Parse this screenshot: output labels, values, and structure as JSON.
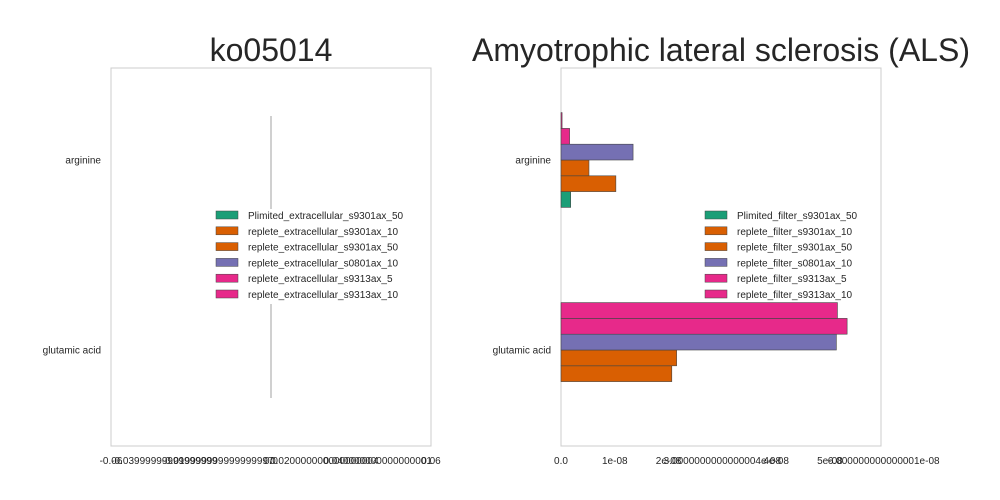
{
  "chart_data": [
    {
      "type": "bar",
      "orientation": "horizontal",
      "title": "ko05014",
      "categories": [
        "arginine",
        "glutamic acid"
      ],
      "series": [
        {
          "name": "Plimited_extracellular_s9301ax_50",
          "color": "#1b9e77",
          "values": [
            0,
            0
          ]
        },
        {
          "name": "replete_extracellular_s9301ax_10",
          "color": "#d95f02",
          "values": [
            0,
            0
          ]
        },
        {
          "name": "replete_extracellular_s9301ax_50",
          "color": "#d95f02",
          "values": [
            0,
            0
          ]
        },
        {
          "name": "replete_extracellular_s0801ax_10",
          "color": "#7570b3",
          "values": [
            0,
            0
          ]
        },
        {
          "name": "replete_extracellular_s9313ax_5",
          "color": "#e7298a",
          "values": [
            0,
            0
          ]
        },
        {
          "name": "replete_extracellular_s9313ax_10",
          "color": "#e7298a",
          "values": [
            0,
            0
          ]
        }
      ],
      "xlim": [
        -0.06,
        0.06
      ],
      "xtick_labels": [
        "-0.06",
        "-0.03999999999999999",
        "-0.019999999999999997",
        "0.0",
        "0.020000000000000004",
        "0.040000000000000001",
        "0.06"
      ],
      "xticks": [
        -0.06,
        -0.04,
        -0.02,
        0.0,
        0.02,
        0.04,
        0.06
      ],
      "grid": false,
      "legend_position": "center-right"
    },
    {
      "type": "bar",
      "orientation": "horizontal",
      "title": "Amyotrophic lateral sclerosis (ALS)",
      "categories": [
        "arginine",
        "glutamic acid"
      ],
      "series": [
        {
          "name": "Plimited_filter_s9301ax_50",
          "color": "#1b9e77",
          "values": [
            1.8e-09,
            0
          ]
        },
        {
          "name": "replete_filter_s9301ax_10",
          "color": "#d95f02",
          "values": [
            1.02e-08,
            2.06e-08
          ]
        },
        {
          "name": "replete_filter_s9301ax_50",
          "color": "#d95f02",
          "values": [
            5.2e-09,
            2.15e-08
          ]
        },
        {
          "name": "replete_filter_s0801ax_10",
          "color": "#7570b3",
          "values": [
            1.34e-08,
            5.12e-08
          ]
        },
        {
          "name": "replete_filter_s9313ax_5",
          "color": "#e7298a",
          "values": [
            1.6e-09,
            5.32e-08
          ]
        },
        {
          "name": "replete_filter_s9313ax_10",
          "color": "#e7298a",
          "values": [
            2e-10,
            5.14e-08
          ]
        }
      ],
      "xlim": [
        0,
        5.95e-08
      ],
      "xtick_labels": [
        "0.0",
        "1e-08",
        "2e-08",
        "3.0000000000000004e-08",
        "4e-08",
        "5e-08",
        "6.000000000000001e-08"
      ],
      "xticks": [
        0,
        1e-08,
        2e-08,
        3e-08,
        4e-08,
        5e-08,
        6e-08
      ],
      "grid": false,
      "legend_position": "center-right"
    }
  ]
}
